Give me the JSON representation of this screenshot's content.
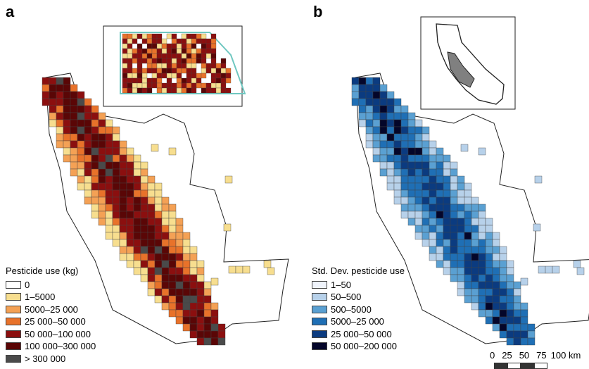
{
  "panels": {
    "a": {
      "label": "a",
      "legend_title": "Pesticide use (kg)",
      "legend": [
        {
          "label": "0",
          "color": "#ffffff"
        },
        {
          "label": "1–5000",
          "color": "#f7de8f"
        },
        {
          "label": "5000–25 000",
          "color": "#f4a155"
        },
        {
          "label": "25 000–50 000",
          "color": "#e8722a"
        },
        {
          "label": "50 000–100 000",
          "color": "#8b0f0f"
        },
        {
          "label": "100 000–300 000",
          "color": "#5a0606"
        },
        {
          "label": "> 300 000",
          "color": "#4a4a4a"
        }
      ]
    },
    "b": {
      "label": "b",
      "legend_title": "Std. Dev. pesticide use",
      "legend": [
        {
          "label": "1–50",
          "color": "#eff3fb"
        },
        {
          "label": "50–500",
          "color": "#b7d1ea"
        },
        {
          "label": "500–5000",
          "color": "#5aa0d2"
        },
        {
          "label": "5000–25 000",
          "color": "#1f6fb5"
        },
        {
          "label": "25 000–50 000",
          "color": "#0b3b80"
        },
        {
          "label": "50 000–200 000",
          "color": "#04062a"
        }
      ]
    }
  },
  "scale_bar": {
    "ticks": [
      "0",
      "25",
      "50",
      "75",
      "100 km"
    ]
  },
  "colors": {
    "inset_highlight": "#6fc7c0",
    "boundary": "#222222",
    "california_fill": "#808080"
  }
}
